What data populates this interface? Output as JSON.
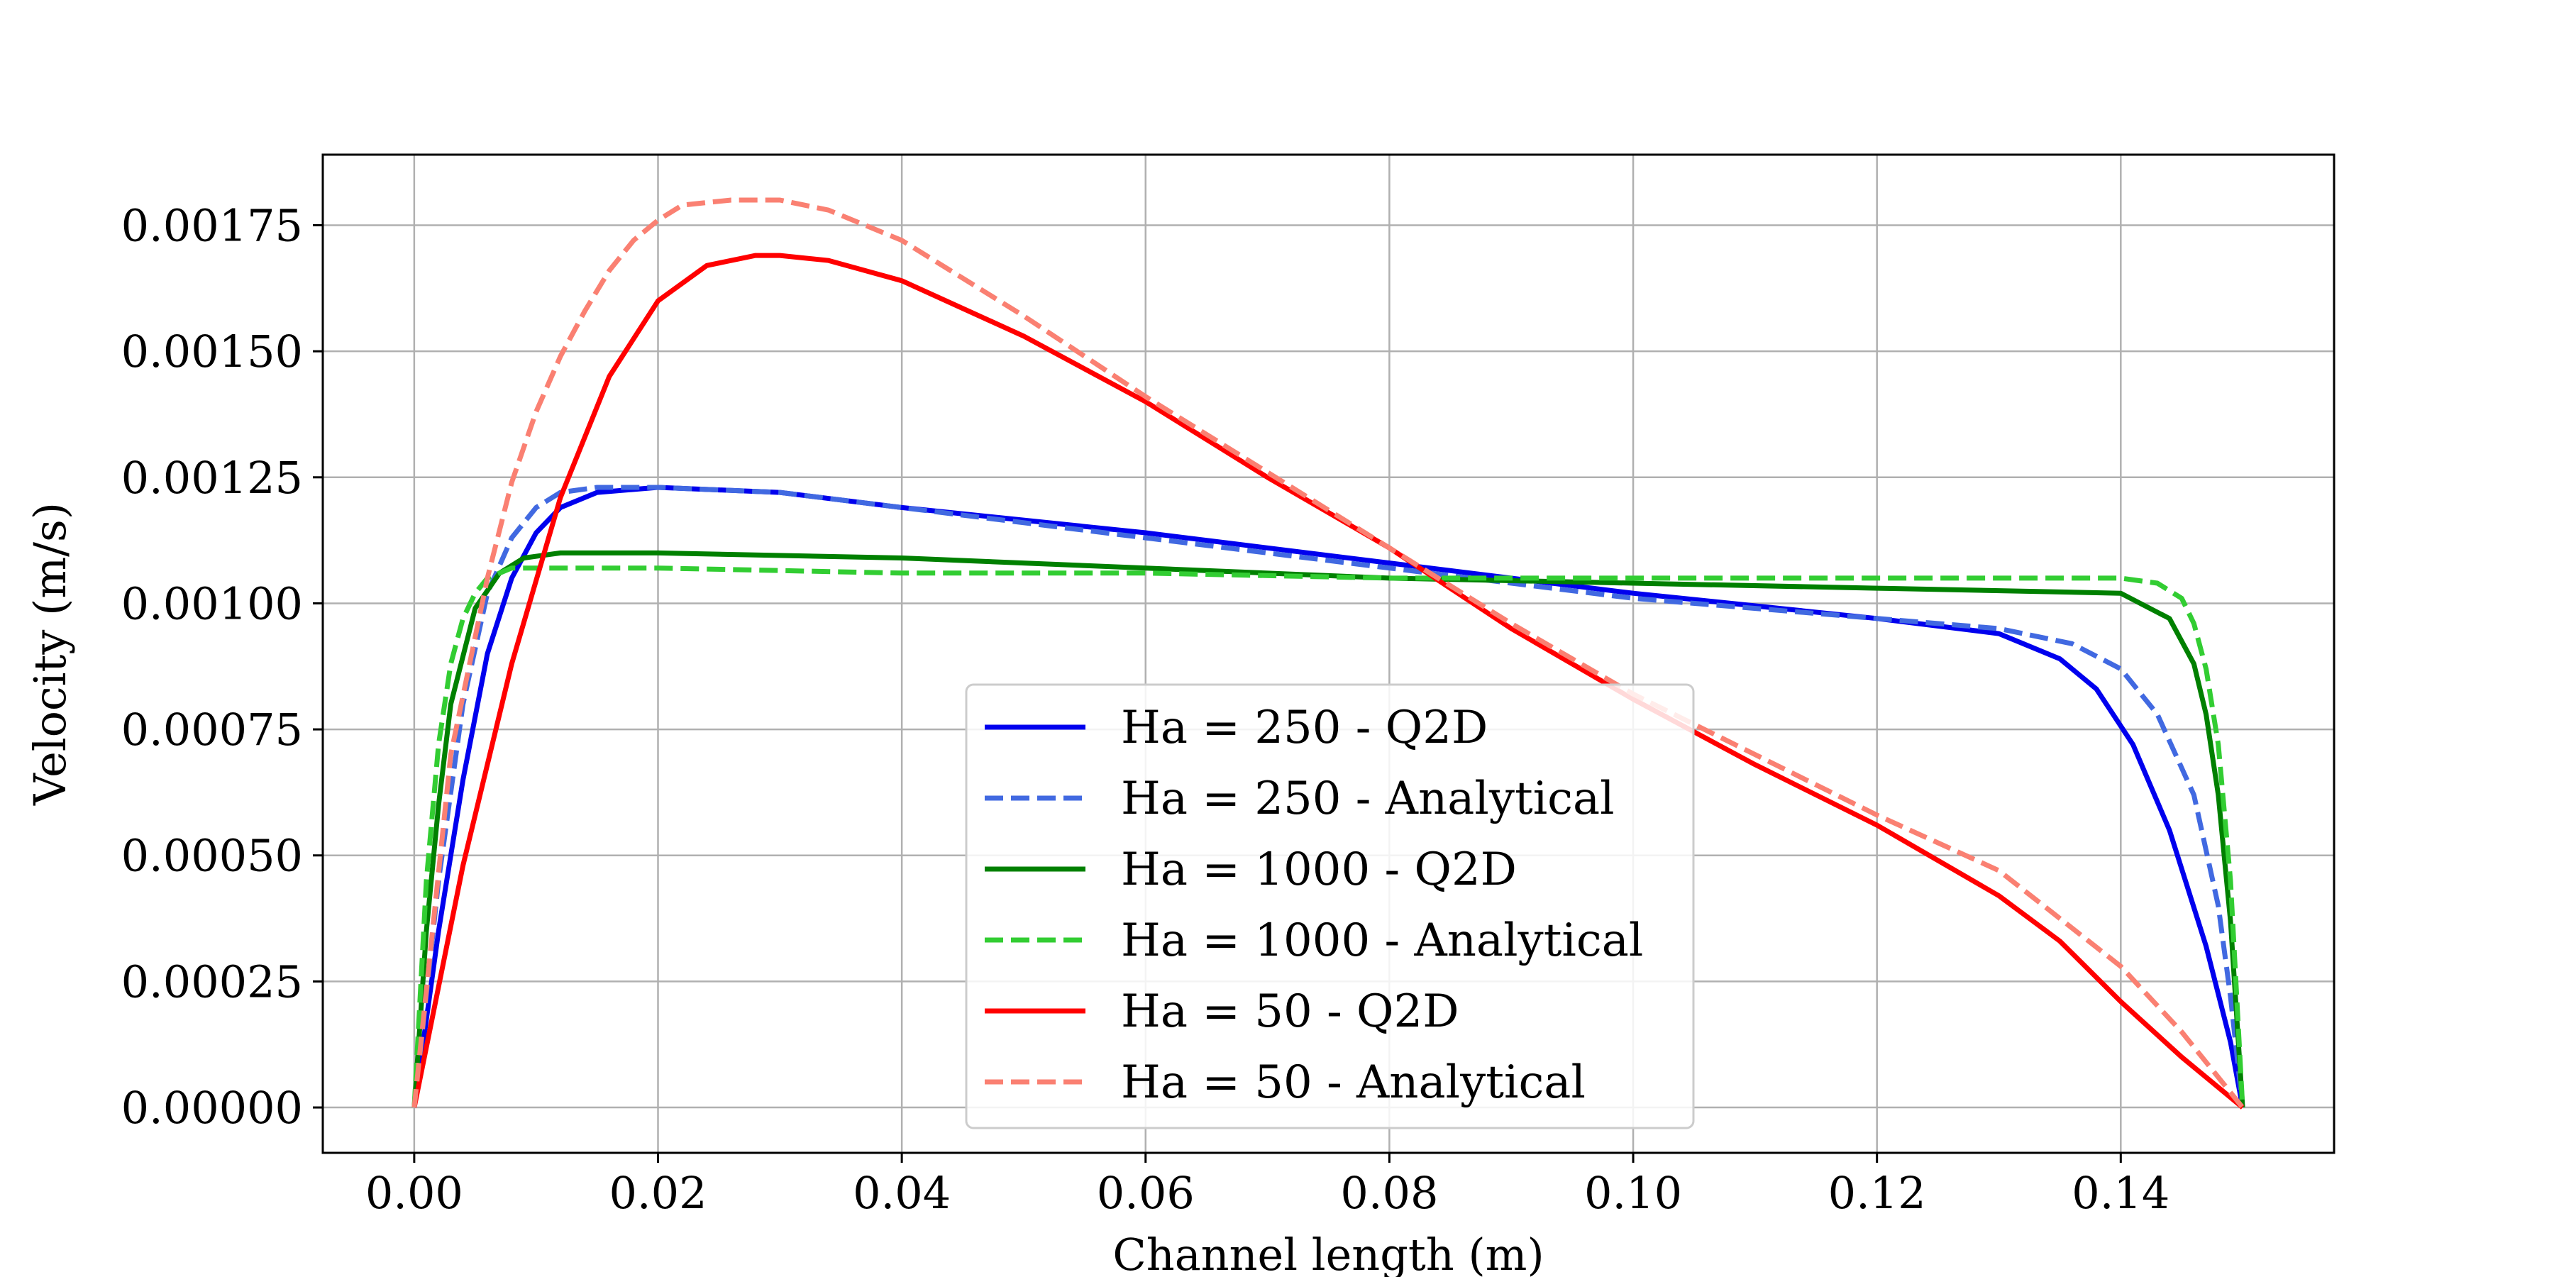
{
  "chart_data": {
    "type": "line",
    "title": "",
    "xlabel": "Channel length (m)",
    "ylabel": "Velocity (m/s)",
    "xlim": [
      -0.0075,
      0.1575
    ],
    "ylim": [
      -9e-05,
      0.00189
    ],
    "x_ticks": [
      "0.00",
      "0.02",
      "0.04",
      "0.06",
      "0.08",
      "0.10",
      "0.12",
      "0.14"
    ],
    "y_ticks": [
      "0.00000",
      "0.00025",
      "0.00050",
      "0.00075",
      "0.00100",
      "0.00125",
      "0.00150",
      "0.00175"
    ],
    "grid": true,
    "legend_position": "lower-center",
    "series": [
      {
        "name": "Ha = 250 - Q2D",
        "color": "#0000ee",
        "dash": "solid",
        "x": [
          0,
          0.002,
          0.004,
          0.006,
          0.008,
          0.01,
          0.012,
          0.015,
          0.02,
          0.03,
          0.04,
          0.06,
          0.08,
          0.1,
          0.12,
          0.13,
          0.135,
          0.138,
          0.141,
          0.144,
          0.147,
          0.149,
          0.15
        ],
        "y": [
          0,
          0.00035,
          0.00065,
          0.0009,
          0.00105,
          0.00114,
          0.00119,
          0.00122,
          0.00123,
          0.00122,
          0.00119,
          0.00114,
          0.00108,
          0.00102,
          0.00097,
          0.00094,
          0.00089,
          0.00083,
          0.00072,
          0.00055,
          0.00032,
          0.00013,
          0
        ]
      },
      {
        "name": "Ha = 250 - Analytical",
        "color": "#4169e1",
        "dash": "dashed",
        "x": [
          0,
          0.002,
          0.004,
          0.006,
          0.008,
          0.01,
          0.012,
          0.015,
          0.018,
          0.02,
          0.03,
          0.04,
          0.06,
          0.08,
          0.1,
          0.12,
          0.13,
          0.136,
          0.14,
          0.143,
          0.146,
          0.148,
          0.149,
          0.15
        ],
        "y": [
          0,
          0.00045,
          0.0008,
          0.00102,
          0.00113,
          0.00119,
          0.00122,
          0.00123,
          0.00123,
          0.00123,
          0.00122,
          0.00119,
          0.00113,
          0.00107,
          0.00101,
          0.00097,
          0.00095,
          0.00092,
          0.00087,
          0.00078,
          0.00062,
          0.0004,
          0.00022,
          0
        ]
      },
      {
        "name": "Ha = 1000 - Q2D",
        "color": "#008000",
        "dash": "solid",
        "x": [
          0,
          0.001,
          0.002,
          0.003,
          0.005,
          0.007,
          0.009,
          0.012,
          0.016,
          0.02,
          0.04,
          0.06,
          0.08,
          0.1,
          0.12,
          0.14,
          0.144,
          0.146,
          0.147,
          0.148,
          0.149,
          0.15
        ],
        "y": [
          0,
          0.00035,
          0.0006,
          0.0008,
          0.00099,
          0.00106,
          0.00109,
          0.0011,
          0.0011,
          0.0011,
          0.00109,
          0.00107,
          0.00105,
          0.00104,
          0.00103,
          0.00102,
          0.00097,
          0.00088,
          0.00078,
          0.00062,
          0.00037,
          0
        ]
      },
      {
        "name": "Ha = 1000 - Analytical",
        "color": "#32cd32",
        "dash": "dashed",
        "x": [
          0,
          0.001,
          0.002,
          0.003,
          0.004,
          0.005,
          0.006,
          0.008,
          0.01,
          0.02,
          0.04,
          0.06,
          0.08,
          0.1,
          0.12,
          0.14,
          0.143,
          0.145,
          0.146,
          0.147,
          0.148,
          0.149,
          0.15
        ],
        "y": [
          0,
          0.00045,
          0.00072,
          0.00088,
          0.00097,
          0.00102,
          0.00105,
          0.00107,
          0.00107,
          0.00107,
          0.00106,
          0.00106,
          0.00105,
          0.00105,
          0.00105,
          0.00105,
          0.00104,
          0.00101,
          0.00096,
          0.00087,
          0.00072,
          0.00045,
          0
        ]
      },
      {
        "name": "Ha = 50 - Q2D",
        "color": "#ff0000",
        "dash": "solid",
        "x": [
          0,
          0.004,
          0.008,
          0.012,
          0.016,
          0.02,
          0.024,
          0.028,
          0.03,
          0.034,
          0.04,
          0.05,
          0.06,
          0.07,
          0.08,
          0.09,
          0.1,
          0.11,
          0.12,
          0.13,
          0.135,
          0.14,
          0.145,
          0.15
        ],
        "y": [
          0,
          0.00048,
          0.00088,
          0.00121,
          0.00145,
          0.0016,
          0.00167,
          0.00169,
          0.00169,
          0.00168,
          0.00164,
          0.00153,
          0.0014,
          0.00125,
          0.00111,
          0.00095,
          0.00081,
          0.00068,
          0.00056,
          0.00042,
          0.00033,
          0.00021,
          0.0001,
          0
        ]
      },
      {
        "name": "Ha = 50 - Analytical",
        "color": "#fa8072",
        "dash": "dashed",
        "x": [
          0,
          0.003,
          0.006,
          0.008,
          0.01,
          0.012,
          0.014,
          0.016,
          0.018,
          0.02,
          0.022,
          0.026,
          0.03,
          0.034,
          0.04,
          0.05,
          0.06,
          0.07,
          0.08,
          0.09,
          0.1,
          0.11,
          0.12,
          0.13,
          0.14,
          0.145,
          0.15
        ],
        "y": [
          0,
          0.0007,
          0.00105,
          0.00124,
          0.00138,
          0.00149,
          0.00158,
          0.00166,
          0.00172,
          0.00176,
          0.00179,
          0.0018,
          0.0018,
          0.00178,
          0.00172,
          0.00157,
          0.00141,
          0.00126,
          0.00111,
          0.00096,
          0.00082,
          0.0007,
          0.00058,
          0.00047,
          0.00028,
          0.00015,
          0
        ]
      }
    ]
  }
}
